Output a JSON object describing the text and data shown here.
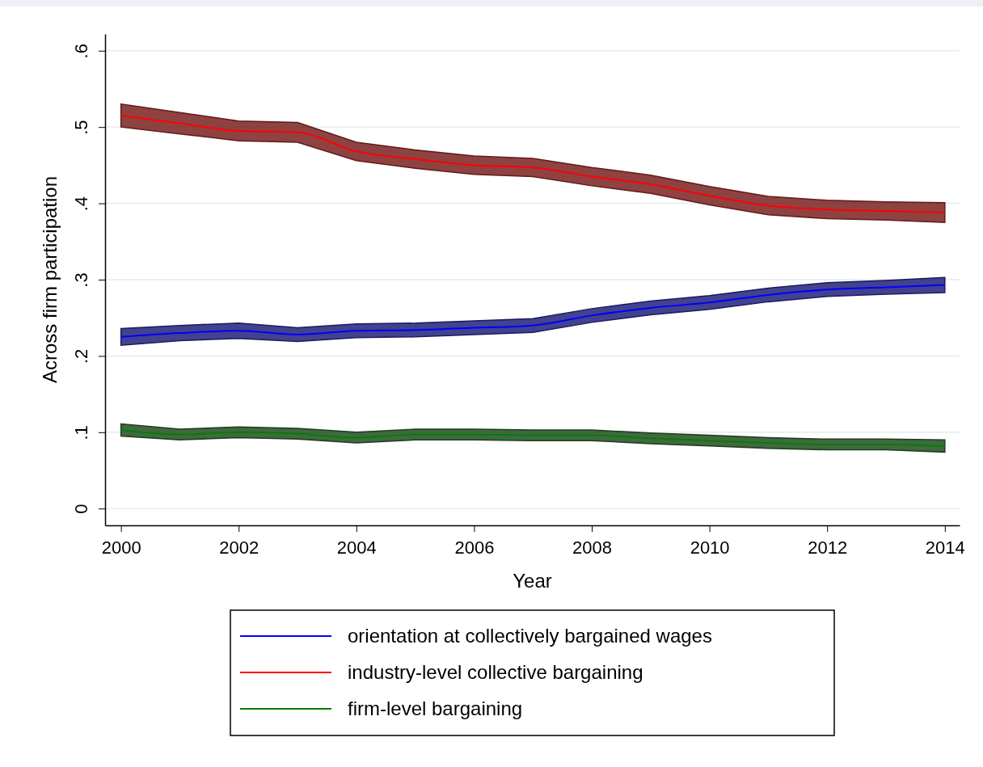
{
  "chart_data": {
    "type": "line",
    "xlabel": "Year",
    "ylabel": "Across firm participation",
    "x": [
      2000,
      2001,
      2002,
      2003,
      2004,
      2005,
      2006,
      2007,
      2008,
      2009,
      2010,
      2011,
      2012,
      2013,
      2014
    ],
    "xlim": [
      1999.73,
      2014.25
    ],
    "xticks": [
      2000,
      2002,
      2004,
      2006,
      2008,
      2010,
      2012,
      2014
    ],
    "ylim": [
      -0.022,
      0.622
    ],
    "yticks": [
      {
        "value": 0,
        "label": "0"
      },
      {
        "value": 0.1,
        "label": ".1"
      },
      {
        "value": 0.2,
        "label": ".2"
      },
      {
        "value": 0.3,
        "label": ".3"
      },
      {
        "value": 0.4,
        "label": ".4"
      },
      {
        "value": 0.5,
        "label": ".5"
      },
      {
        "value": 0.6,
        "label": ".6"
      }
    ],
    "grid": "y",
    "legend": "bottom",
    "line_style": "solid",
    "marker": "none",
    "series": [
      {
        "name": "orientation at collectively bargained wages",
        "color": "#0000ff",
        "values": [
          0.225,
          0.23,
          0.233,
          0.228,
          0.233,
          0.234,
          0.237,
          0.24,
          0.253,
          0.263,
          0.27,
          0.28,
          0.287,
          0.29,
          0.293
        ],
        "lower": [
          0.214,
          0.22,
          0.223,
          0.219,
          0.224,
          0.225,
          0.228,
          0.231,
          0.244,
          0.254,
          0.261,
          0.271,
          0.278,
          0.281,
          0.283
        ],
        "upper": [
          0.236,
          0.24,
          0.243,
          0.237,
          0.242,
          0.243,
          0.246,
          0.249,
          0.262,
          0.272,
          0.279,
          0.289,
          0.296,
          0.299,
          0.303
        ]
      },
      {
        "name": "industry-level collective bargaining",
        "color": "#ff0000",
        "values": [
          0.515,
          0.505,
          0.495,
          0.493,
          0.468,
          0.458,
          0.45,
          0.447,
          0.435,
          0.425,
          0.41,
          0.397,
          0.392,
          0.39,
          0.388
        ],
        "lower": [
          0.5,
          0.491,
          0.482,
          0.48,
          0.456,
          0.446,
          0.438,
          0.435,
          0.423,
          0.413,
          0.398,
          0.385,
          0.38,
          0.378,
          0.375
        ],
        "upper": [
          0.53,
          0.519,
          0.508,
          0.506,
          0.48,
          0.47,
          0.462,
          0.459,
          0.447,
          0.437,
          0.422,
          0.409,
          0.404,
          0.402,
          0.401
        ]
      },
      {
        "name": "firm-level bargaining",
        "color": "#008000",
        "values": [
          0.103,
          0.097,
          0.1,
          0.098,
          0.093,
          0.097,
          0.097,
          0.096,
          0.096,
          0.092,
          0.089,
          0.086,
          0.084,
          0.084,
          0.082
        ],
        "lower": [
          0.095,
          0.09,
          0.093,
          0.091,
          0.086,
          0.09,
          0.09,
          0.089,
          0.089,
          0.085,
          0.082,
          0.079,
          0.077,
          0.077,
          0.074
        ],
        "upper": [
          0.111,
          0.104,
          0.107,
          0.105,
          0.1,
          0.104,
          0.104,
          0.103,
          0.103,
          0.099,
          0.096,
          0.093,
          0.091,
          0.091,
          0.09
        ]
      }
    ]
  }
}
